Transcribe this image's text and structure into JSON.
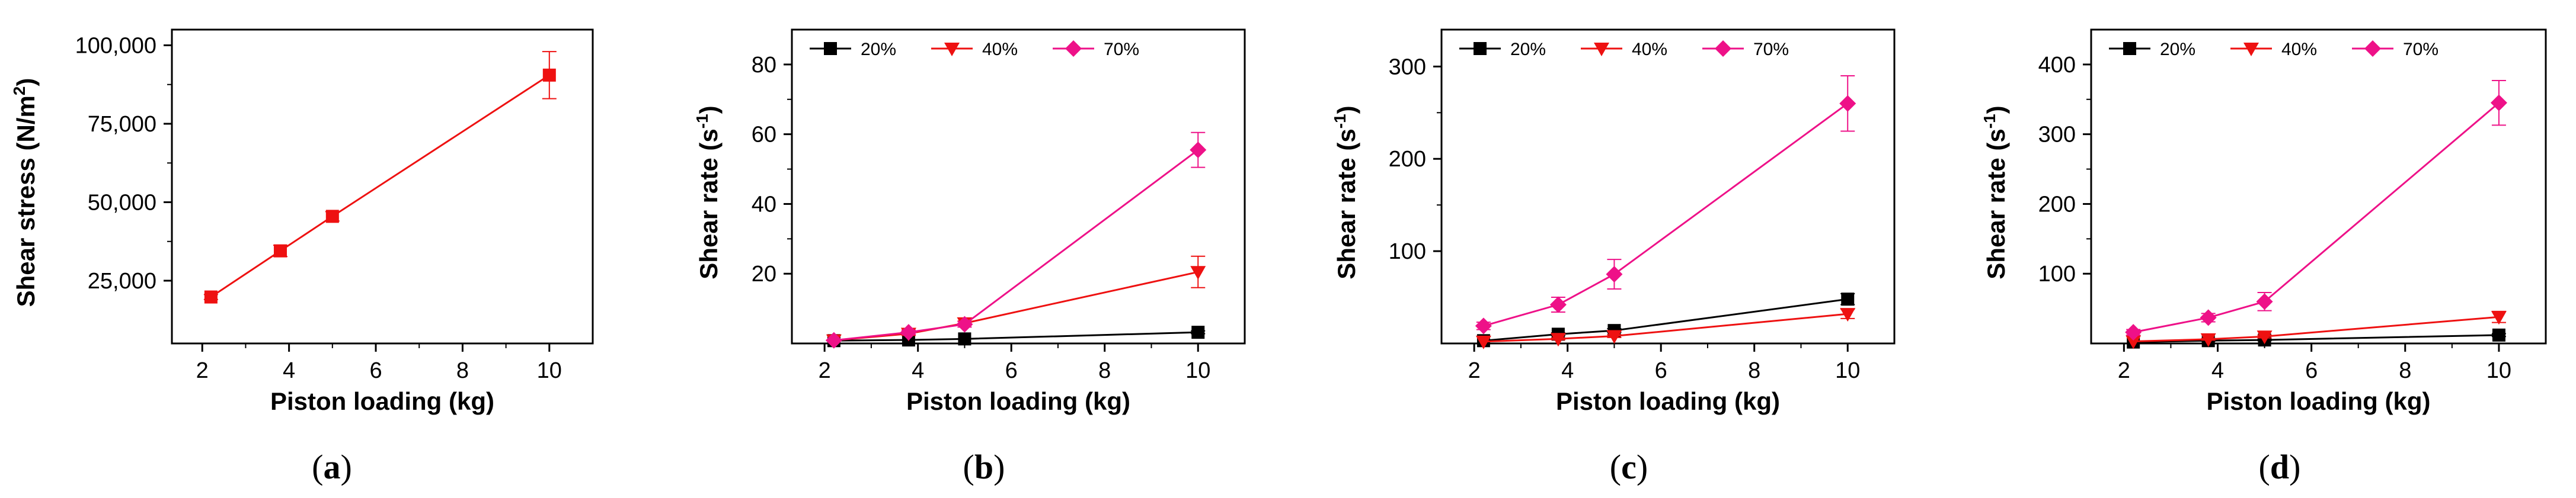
{
  "chart_data": [
    {
      "type": "line",
      "panel_label": "(a)",
      "caption_letter": "a",
      "xlabel": "Piston loading (kg)",
      "ylabel": "Shear stress (N/m",
      "ylabel_sup": "2",
      "ylabel_end": ")",
      "xlim": [
        1.3,
        11
      ],
      "ylim": [
        5000,
        105000
      ],
      "xticks": [
        2,
        4,
        6,
        8,
        10
      ],
      "yticks": [
        25000,
        50000,
        75000,
        100000
      ],
      "ytick_labels": [
        "25,000",
        "50,000",
        "75,000",
        "100,000"
      ],
      "x": [
        2.2,
        3.8,
        5,
        10
      ],
      "series": [
        {
          "name": "Shear stress",
          "color": "#ee1111",
          "marker": "square",
          "values": [
            19800,
            34500,
            45500,
            90500
          ],
          "errors": [
            800,
            1800,
            1500,
            7500
          ]
        }
      ]
    },
    {
      "type": "line",
      "panel_label": "(b)",
      "caption_letter": "b",
      "xlabel": "Piston loading (kg)",
      "ylabel": "Shear rate (s",
      "ylabel_sup": "-1",
      "ylabel_end": ")",
      "xlim": [
        1.3,
        11
      ],
      "ylim": [
        0,
        90
      ],
      "xticks": [
        2,
        4,
        6,
        8,
        10
      ],
      "yticks": [
        20,
        40,
        60,
        80
      ],
      "ytick_labels": [
        "20",
        "40",
        "60",
        "80"
      ],
      "x": [
        2.2,
        3.8,
        5,
        10
      ],
      "series": [
        {
          "name": "20%",
          "color": "#000000",
          "marker": "square",
          "values": [
            0.8,
            1.0,
            1.3,
            3.2
          ],
          "errors": [
            0,
            0,
            0,
            0.4
          ]
        },
        {
          "name": "40%",
          "color": "#ee1111",
          "marker": "triangle-down",
          "values": [
            0.9,
            2.8,
            5.8,
            20.5
          ],
          "errors": [
            0,
            0.5,
            0.6,
            4.5
          ]
        },
        {
          "name": "70%",
          "color": "#ee1188",
          "marker": "diamond",
          "values": [
            0.9,
            3.2,
            5.5,
            55.5
          ],
          "errors": [
            0,
            0.6,
            0.8,
            5.0
          ]
        }
      ]
    },
    {
      "type": "line",
      "panel_label": "(c)",
      "caption_letter": "c",
      "xlabel": "Piston loading (kg)",
      "ylabel": "Shear rate (s",
      "ylabel_sup": "-1",
      "ylabel_end": ")",
      "xlim": [
        1.3,
        11
      ],
      "ylim": [
        0,
        340
      ],
      "xticks": [
        2,
        4,
        6,
        8,
        10
      ],
      "yticks": [
        100,
        200,
        300
      ],
      "ytick_labels": [
        "100",
        "200",
        "300"
      ],
      "x": [
        2.2,
        3.8,
        5,
        10
      ],
      "series": [
        {
          "name": "20%",
          "color": "#000000",
          "marker": "square",
          "values": [
            3,
            10,
            14,
            48
          ],
          "errors": [
            0,
            1.5,
            2,
            6
          ]
        },
        {
          "name": "40%",
          "color": "#ee1111",
          "marker": "triangle-down",
          "values": [
            2,
            5,
            8,
            32
          ],
          "errors": [
            0,
            1,
            1.5,
            5
          ]
        },
        {
          "name": "70%",
          "color": "#ee1188",
          "marker": "diamond",
          "values": [
            19,
            42,
            75,
            260
          ],
          "errors": [
            4,
            8,
            16,
            30
          ]
        }
      ]
    },
    {
      "type": "line",
      "panel_label": "(d)",
      "caption_letter": "d",
      "xlabel": "Piston loading (kg)",
      "ylabel": "Shear rate (s",
      "ylabel_sup": "-1",
      "ylabel_end": ")",
      "xlim": [
        1.3,
        11
      ],
      "ylim": [
        0,
        450
      ],
      "xticks": [
        2,
        4,
        6,
        8,
        10
      ],
      "yticks": [
        100,
        200,
        300,
        400
      ],
      "ytick_labels": [
        "100",
        "200",
        "300",
        "400"
      ],
      "x": [
        2.2,
        3.8,
        5,
        10
      ],
      "series": [
        {
          "name": "20%",
          "color": "#000000",
          "marker": "square",
          "values": [
            2,
            4,
            5,
            12
          ],
          "errors": [
            0,
            0.8,
            1,
            2
          ]
        },
        {
          "name": "40%",
          "color": "#ee1111",
          "marker": "triangle-down",
          "values": [
            3,
            6,
            10,
            38
          ],
          "errors": [
            0,
            1.2,
            2,
            8
          ]
        },
        {
          "name": "70%",
          "color": "#ee1188",
          "marker": "diamond",
          "values": [
            16,
            37,
            60,
            345
          ],
          "errors": [
            4,
            6,
            13,
            32
          ]
        }
      ]
    }
  ],
  "caption_paren_open": "(",
  "caption_paren_close": ")"
}
